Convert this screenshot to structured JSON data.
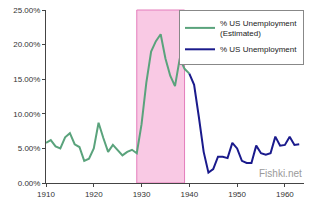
{
  "chart_data": {
    "type": "line",
    "series": [
      {
        "name": "% US Unemployment (Estimated)",
        "color": "#5aa37c",
        "x": [
          1910,
          1911,
          1912,
          1913,
          1914,
          1915,
          1916,
          1917,
          1918,
          1919,
          1920,
          1921,
          1922,
          1923,
          1924,
          1925,
          1926,
          1927,
          1928,
          1929,
          1930,
          1931,
          1932,
          1933,
          1934,
          1935,
          1936,
          1937,
          1938,
          1939,
          1940
        ],
        "values": [
          5.8,
          6.2,
          5.3,
          5.0,
          6.6,
          7.2,
          5.6,
          5.2,
          3.2,
          3.5,
          5.0,
          8.7,
          6.5,
          4.5,
          5.5,
          4.8,
          4.0,
          4.5,
          4.8,
          4.3,
          8.5,
          14.5,
          19.0,
          20.5,
          21.5,
          18.0,
          15.5,
          14.0,
          18.0,
          16.5,
          15.8
        ]
      },
      {
        "name": "% US Unemployment",
        "color": "#1a1a8c",
        "x": [
          1940,
          1941,
          1942,
          1943,
          1944,
          1945,
          1946,
          1947,
          1948,
          1949,
          1950,
          1951,
          1952,
          1953,
          1954,
          1955,
          1956,
          1957,
          1958,
          1959,
          1960,
          1961,
          1962,
          1963
        ],
        "values": [
          15.8,
          14.2,
          9.5,
          4.5,
          1.5,
          2.0,
          3.8,
          3.8,
          3.6,
          5.8,
          5.0,
          3.2,
          2.9,
          2.9,
          5.4,
          4.3,
          4.1,
          4.3,
          6.7,
          5.4,
          5.5,
          6.7,
          5.5,
          5.6
        ]
      }
    ],
    "xlim": [
      1910,
      1964
    ],
    "xticks": [
      1910,
      1920,
      1930,
      1940,
      1950,
      1960
    ],
    "ylim": [
      0,
      25
    ],
    "yticks": [
      {
        "value": 0,
        "label": "0.00%"
      },
      {
        "value": 5,
        "label": "5.00%"
      },
      {
        "value": 10,
        "label": "10.00%"
      },
      {
        "value": 15,
        "label": "15.00%"
      },
      {
        "value": 20,
        "label": "20.00%"
      },
      {
        "value": 25,
        "label": "25.00%"
      }
    ],
    "highlight": {
      "x": [
        1929,
        1939
      ]
    },
    "grid": false,
    "legend": "top-right",
    "watermark": "Fishki.net"
  }
}
